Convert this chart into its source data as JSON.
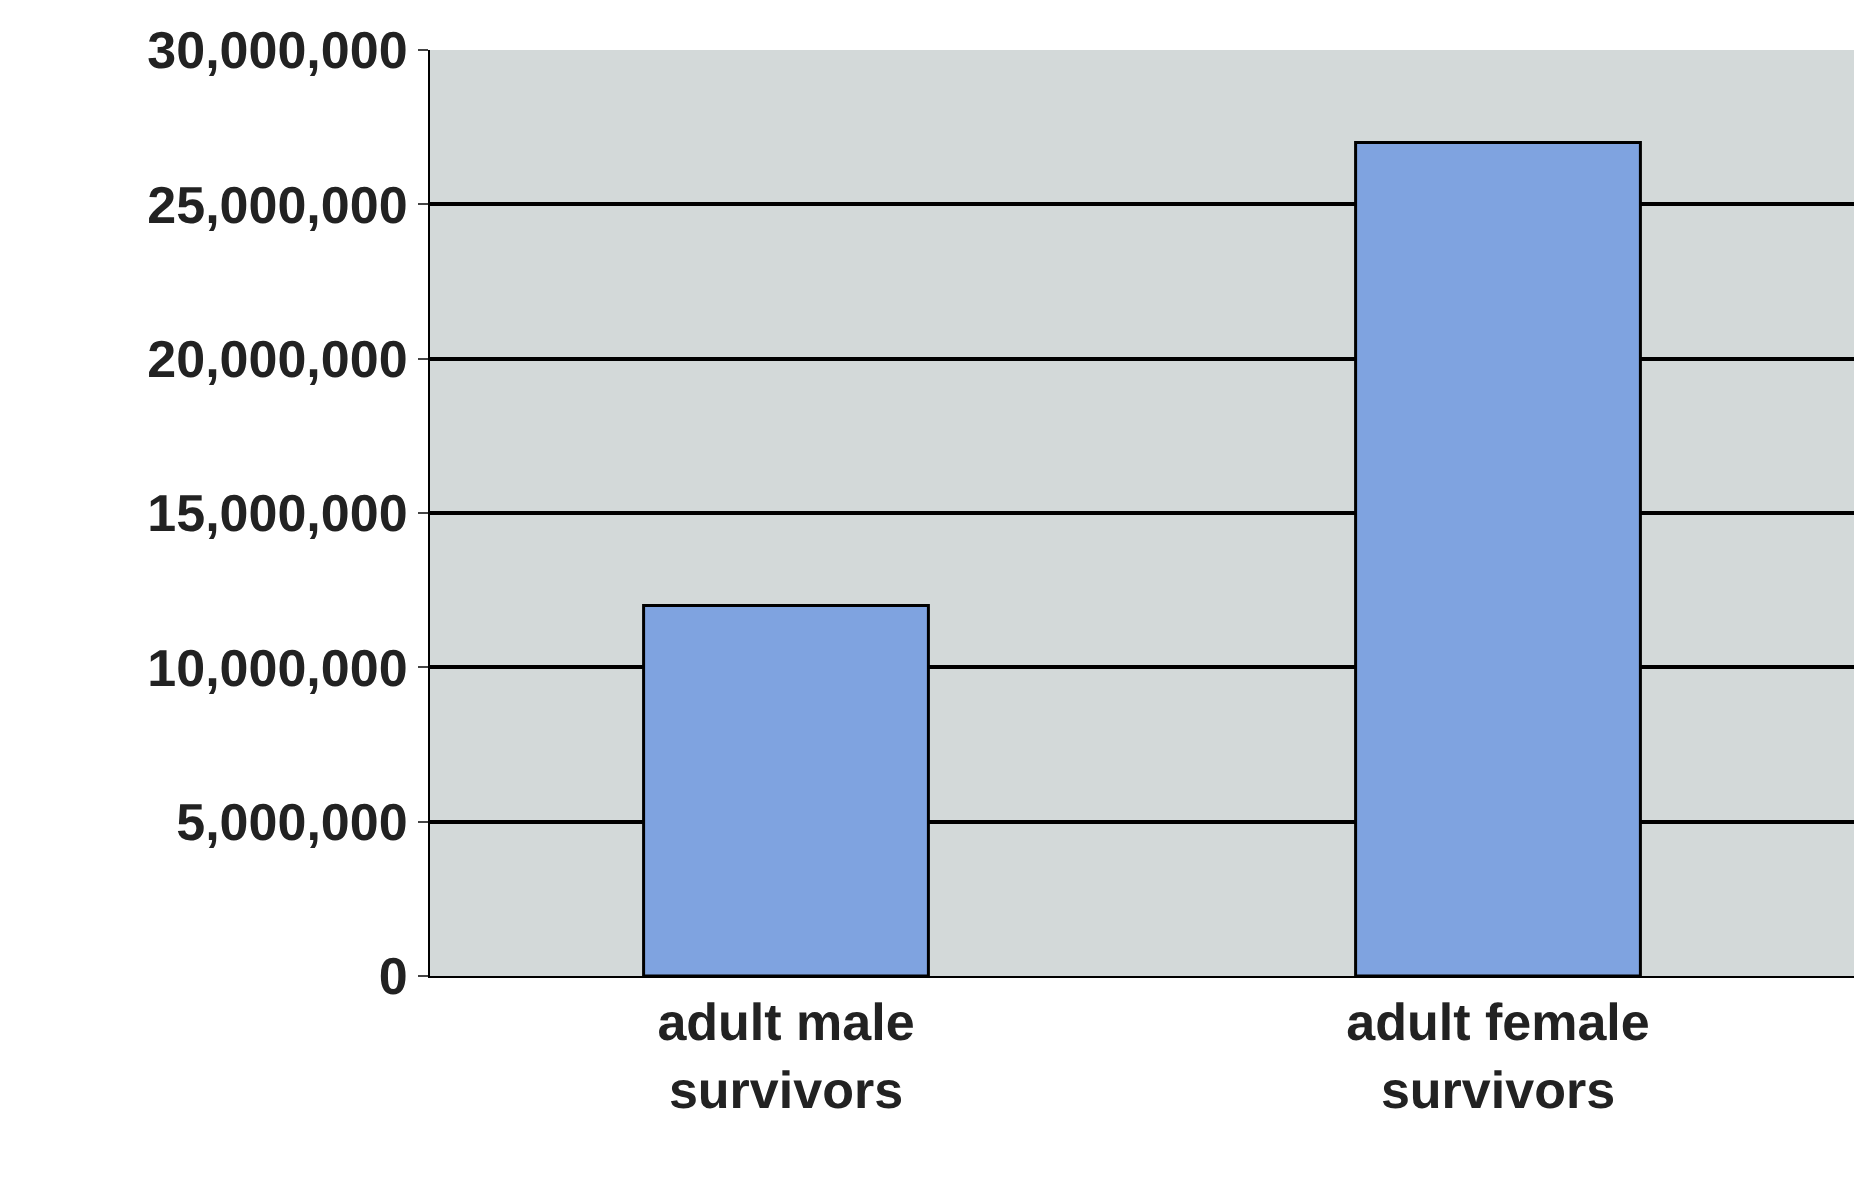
{
  "chart_data": {
    "type": "bar",
    "categories": [
      "adult male survivors",
      "adult female survivors"
    ],
    "values": [
      12000000,
      27000000
    ],
    "color": "#7fa3e0",
    "ylim": [
      0,
      30000000
    ],
    "yticks": [
      {
        "value": 0,
        "label": "0"
      },
      {
        "value": 5000000,
        "label": "5,000,000"
      },
      {
        "value": 10000000,
        "label": "10,000,000"
      },
      {
        "value": 15000000,
        "label": "15,000,000"
      },
      {
        "value": 20000000,
        "label": "20,000,000"
      },
      {
        "value": 25000000,
        "label": "25,000,000"
      },
      {
        "value": 30000000,
        "label": "30,000,000"
      }
    ],
    "grid": "y"
  }
}
